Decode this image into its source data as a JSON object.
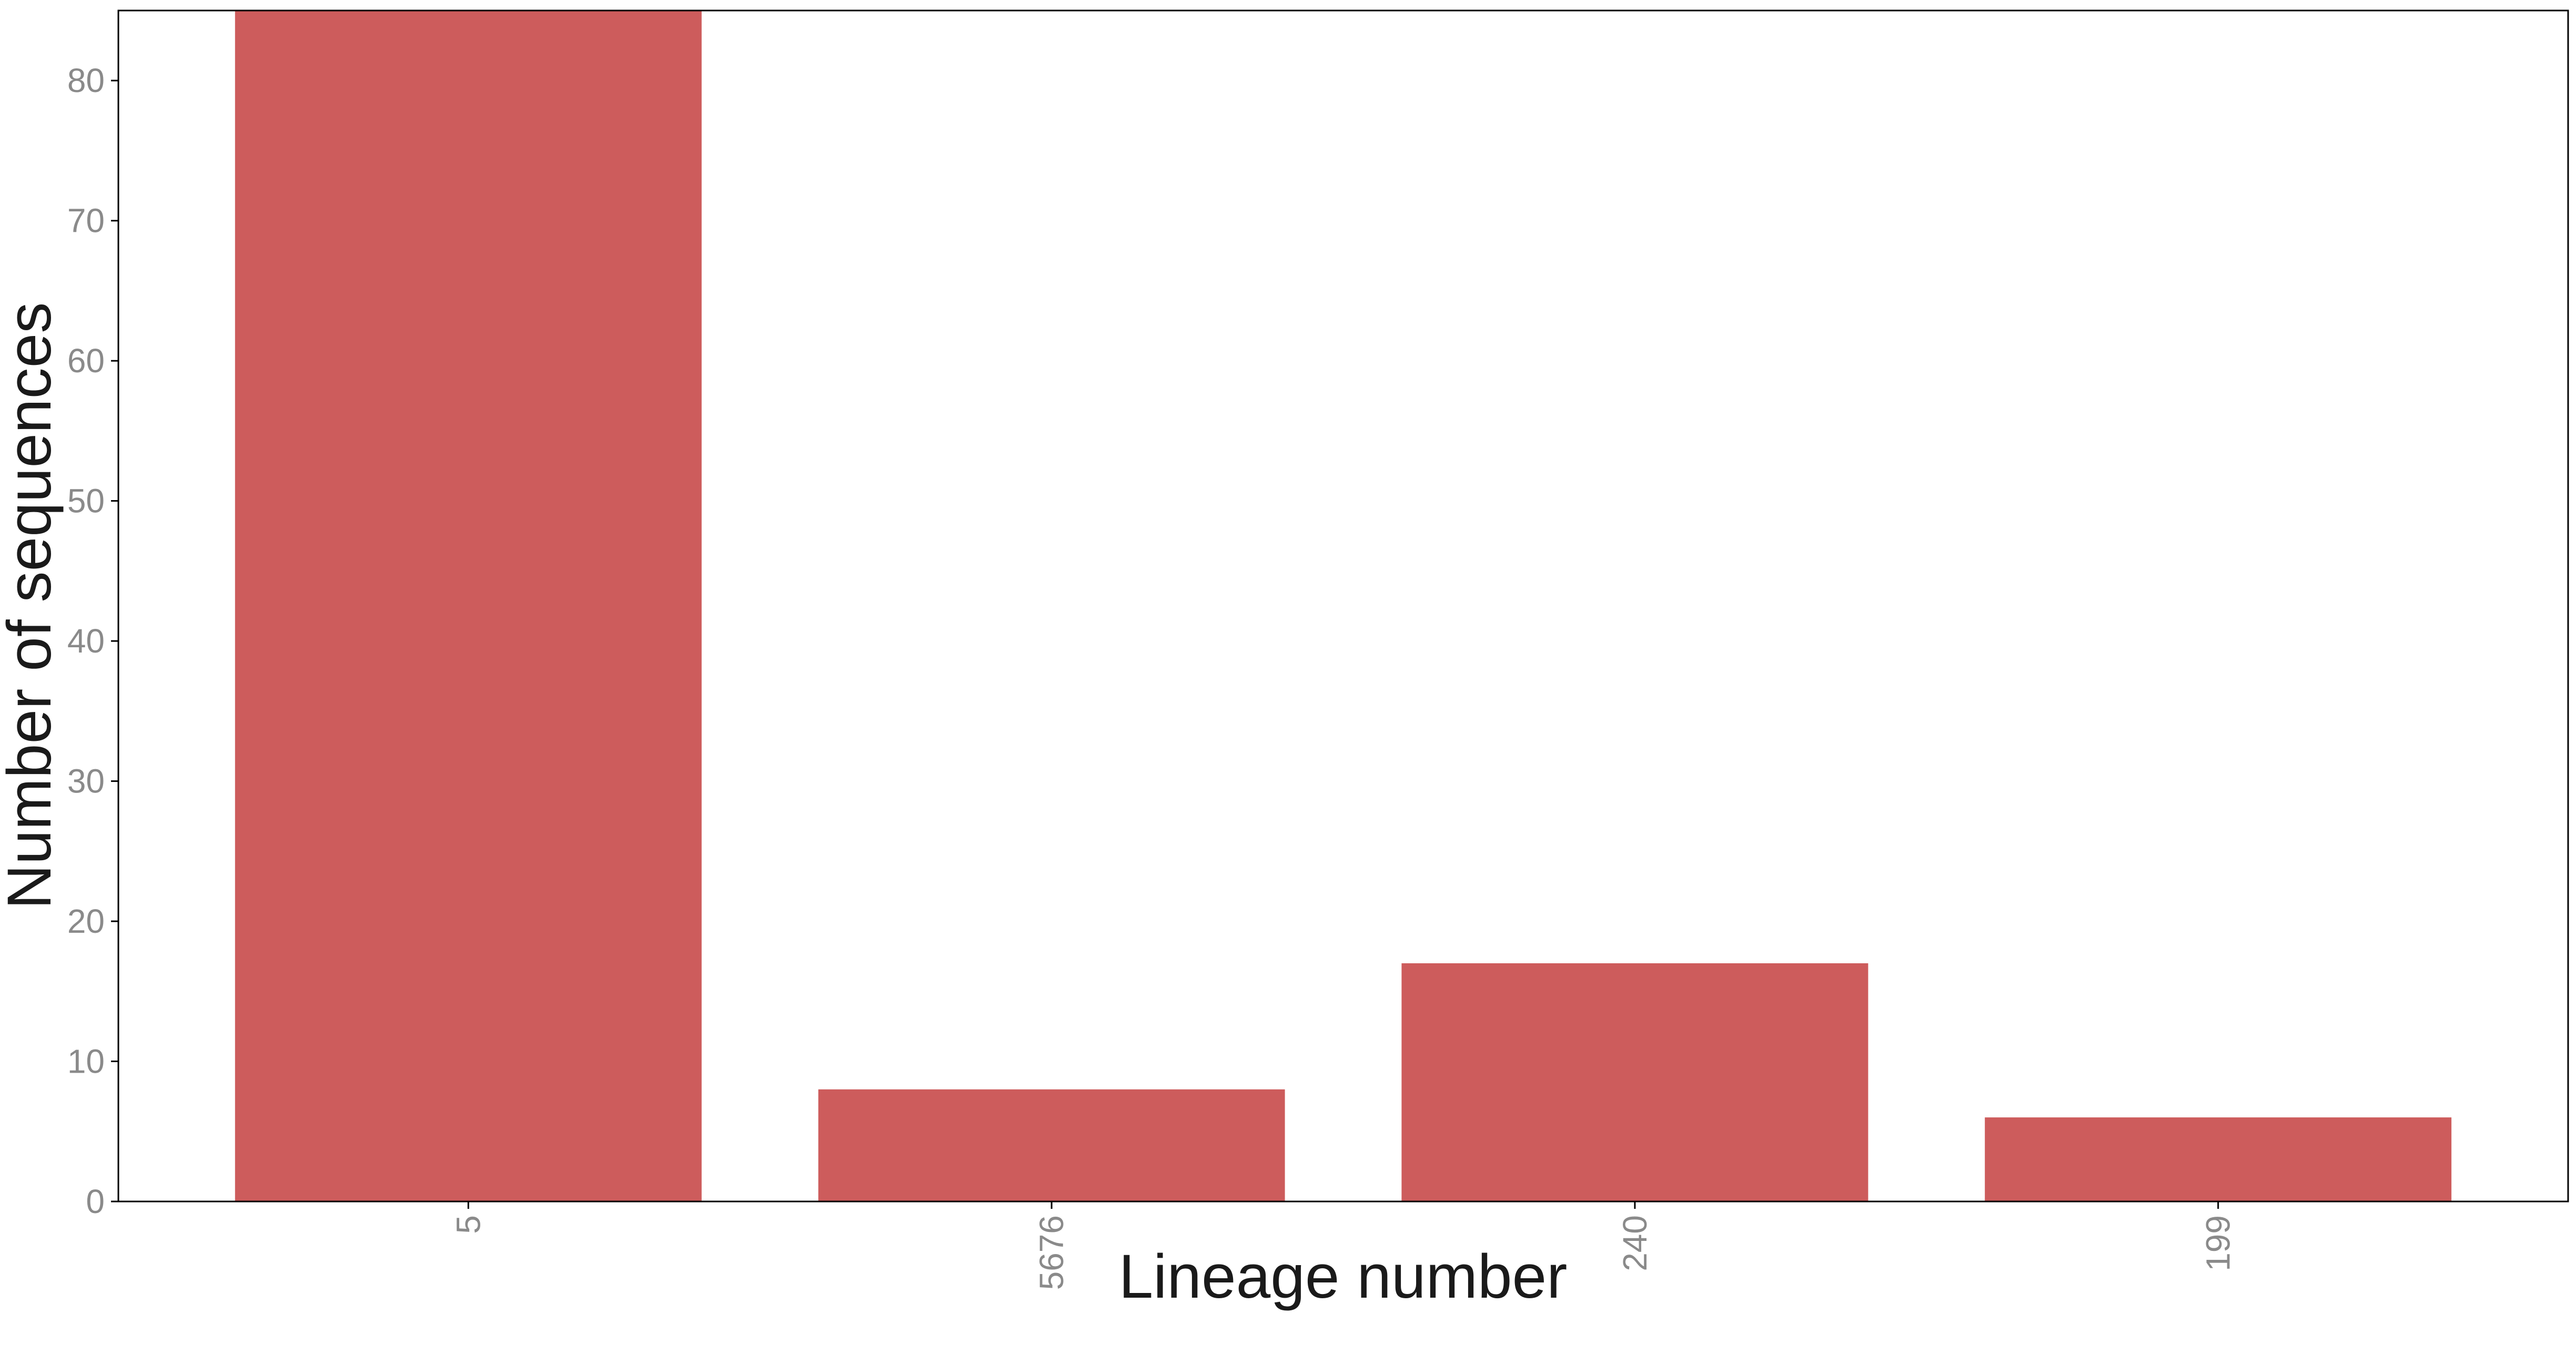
{
  "chart_data": {
    "type": "bar",
    "title": "",
    "xlabel": "Lineage number",
    "ylabel": "Number of sequences",
    "categories": [
      "5",
      "5676",
      "240",
      "199"
    ],
    "values": [
      85,
      8,
      17,
      6
    ],
    "ylim": [
      0,
      85
    ],
    "yticks": [
      0,
      10,
      20,
      30,
      40,
      50,
      60,
      70,
      80
    ],
    "ytick_labels": [
      "0",
      "10",
      "20",
      "30",
      "40",
      "50",
      "60",
      "70",
      "80"
    ],
    "x_tick_rotation": "vertical",
    "grid": false,
    "legend": "none",
    "bar_color": "#cd5c5c",
    "axis_color": "#000000",
    "tick_label_color": "#8a8a8a"
  }
}
